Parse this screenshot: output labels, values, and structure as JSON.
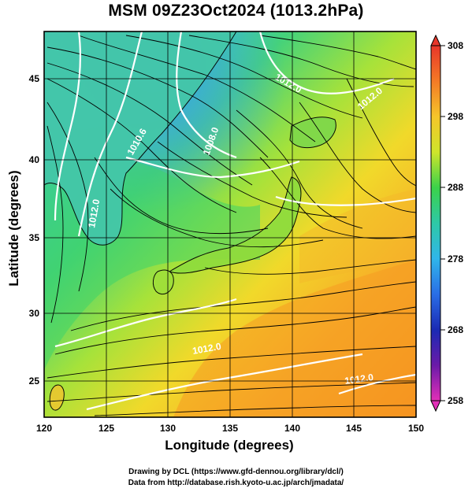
{
  "title": "MSM 09Z23Oct2024 (1013.2hPa)",
  "axes": {
    "xlabel": "Longitude (degrees)",
    "ylabel": "Latitude  (degrees)",
    "x_ticks": [
      "120",
      "125",
      "130",
      "135",
      "140",
      "145",
      "150"
    ],
    "y_ticks": [
      "25",
      "30",
      "35",
      "40",
      "45"
    ],
    "x_range": [
      120,
      150
    ],
    "y_range": [
      22.4,
      47.6
    ]
  },
  "colorbar": {
    "ticks": [
      "308",
      "298",
      "288",
      "278",
      "268",
      "258"
    ],
    "range": [
      258,
      308
    ]
  },
  "isobar_labels": [
    "1010.6",
    "1008.0",
    "1012.0",
    "1012.0",
    "1012.0",
    "1012.0",
    "1012.0"
  ],
  "credits": {
    "line1": "Drawing by DCL (https://www.gfd-dennou.org/library/dcl/)",
    "line2": "Data from http://database.rish.kyoto-u.ac.jp/arch/jmadata/"
  }
}
